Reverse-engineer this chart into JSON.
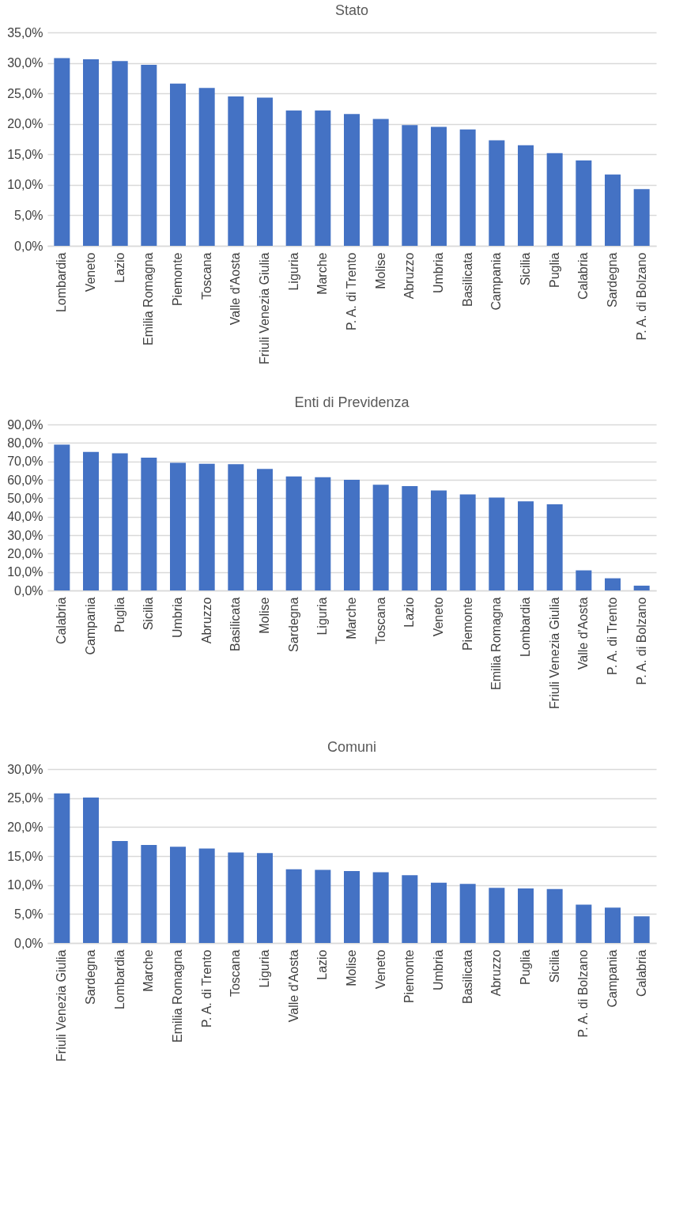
{
  "chart_data": [
    {
      "type": "bar",
      "title": "Stato",
      "categories": [
        "Lombardia",
        "Veneto",
        "Lazio",
        "Emilia Romagna",
        "Piemonte",
        "Toscana",
        "Valle d'Aosta",
        "Friuli Venezia Giulia",
        "Liguria",
        "Marche",
        "P. A. di Trento",
        "Molise",
        "Abruzzo",
        "Umbria",
        "Basilicata",
        "Campania",
        "Sicilia",
        "Puglia",
        "Calabria",
        "Sardegna",
        "P. A. di Bolzano"
      ],
      "values": [
        30.8,
        30.6,
        30.3,
        29.7,
        26.6,
        25.9,
        24.5,
        24.3,
        22.2,
        22.2,
        21.6,
        20.8,
        19.8,
        19.5,
        19.1,
        17.3,
        16.5,
        15.2,
        14.0,
        11.7,
        9.3
      ],
      "color": "#4472c4",
      "ylim": [
        0,
        35
      ],
      "yticks": [
        {
          "value": 0,
          "label": "0,0%"
        },
        {
          "value": 5,
          "label": "5,0%"
        },
        {
          "value": 10,
          "label": "10,0%"
        },
        {
          "value": 15,
          "label": "15,0%"
        },
        {
          "value": 20,
          "label": "20,0%"
        },
        {
          "value": 25,
          "label": "25,0%"
        },
        {
          "value": 30,
          "label": "30,0%"
        },
        {
          "value": 35,
          "label": "35,0%"
        }
      ],
      "grid": "y"
    },
    {
      "type": "bar",
      "title": "Enti di Previdenza",
      "categories": [
        "Calabria",
        "Campania",
        "Puglia",
        "Sicilia",
        "Umbria",
        "Abruzzo",
        "Basilicata",
        "Molise",
        "Sardegna",
        "Liguria",
        "Marche",
        "Toscana",
        "Lazio",
        "Veneto",
        "Piemonte",
        "Emilia Romagna",
        "Lombardia",
        "Friuli Venezia Giulia",
        "Valle d'Aosta",
        "P. A. di Trento",
        "P. A. di Bolzano"
      ],
      "values": [
        79.1,
        75.1,
        74.4,
        72.0,
        69.2,
        68.7,
        68.5,
        65.9,
        61.8,
        61.4,
        60.0,
        57.3,
        56.6,
        54.2,
        52.1,
        50.4,
        48.3,
        46.7,
        10.9,
        6.6,
        2.6
      ],
      "color": "#4472c4",
      "ylim": [
        0,
        90
      ],
      "yticks": [
        {
          "value": 0,
          "label": "0,0%"
        },
        {
          "value": 10,
          "label": "10,0%"
        },
        {
          "value": 20,
          "label": "20,0%"
        },
        {
          "value": 30,
          "label": "30,0%"
        },
        {
          "value": 40,
          "label": "40,0%"
        },
        {
          "value": 50,
          "label": "50,0%"
        },
        {
          "value": 60,
          "label": "60,0%"
        },
        {
          "value": 70,
          "label": "70,0%"
        },
        {
          "value": 80,
          "label": "80,0%"
        },
        {
          "value": 90,
          "label": "90,0%"
        }
      ],
      "grid": "y"
    },
    {
      "type": "bar",
      "title": "Comuni",
      "categories": [
        "Friuli Venezia Giulia",
        "Sardegna",
        "Lombardia",
        "Marche",
        "Emilia Romagna",
        "P. A. di Trento",
        "Toscana",
        "Liguria",
        "Valle d'Aosta",
        "Lazio",
        "Molise",
        "Veneto",
        "Piemonte",
        "Umbria",
        "Basilicata",
        "Abruzzo",
        "Puglia",
        "Sicilia",
        "P. A. di Bolzano",
        "Campania",
        "Calabria"
      ],
      "values": [
        25.8,
        25.1,
        17.6,
        16.9,
        16.6,
        16.3,
        15.6,
        15.5,
        12.7,
        12.6,
        12.4,
        12.2,
        11.7,
        10.4,
        10.2,
        9.5,
        9.4,
        9.3,
        6.6,
        6.1,
        4.6
      ],
      "color": "#4472c4",
      "ylim": [
        0,
        30
      ],
      "yticks": [
        {
          "value": 0,
          "label": "0,0%"
        },
        {
          "value": 5,
          "label": "5,0%"
        },
        {
          "value": 10,
          "label": "10,0%"
        },
        {
          "value": 15,
          "label": "15,0%"
        },
        {
          "value": 20,
          "label": "20,0%"
        },
        {
          "value": 25,
          "label": "25,0%"
        },
        {
          "value": 30,
          "label": "30,0%"
        }
      ],
      "grid": "y"
    }
  ]
}
